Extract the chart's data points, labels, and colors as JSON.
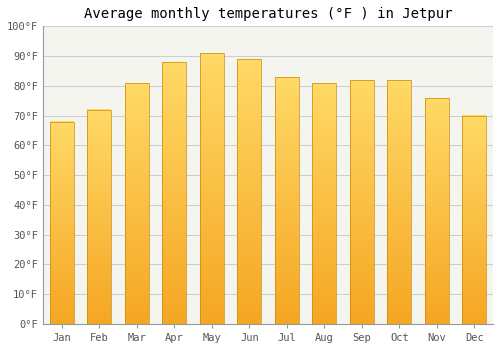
{
  "title": "Average monthly temperatures (°F ) in Jetpur",
  "months": [
    "Jan",
    "Feb",
    "Mar",
    "Apr",
    "May",
    "Jun",
    "Jul",
    "Aug",
    "Sep",
    "Oct",
    "Nov",
    "Dec"
  ],
  "values": [
    68,
    72,
    81,
    88,
    91,
    89,
    83,
    81,
    82,
    82,
    76,
    70
  ],
  "bar_color_bottom": "#F5A623",
  "bar_color_top": "#FFD966",
  "ylim": [
    0,
    100
  ],
  "yticks": [
    0,
    10,
    20,
    30,
    40,
    50,
    60,
    70,
    80,
    90,
    100
  ],
  "ytick_labels": [
    "0°F",
    "10°F",
    "20°F",
    "30°F",
    "40°F",
    "50°F",
    "60°F",
    "70°F",
    "80°F",
    "90°F",
    "100°F"
  ],
  "title_fontsize": 10,
  "tick_fontsize": 7.5,
  "background_color": "#ffffff",
  "plot_bg_color": "#f5f5f0",
  "grid_color": "#cccccc",
  "bar_width": 0.65,
  "n_segments": 100
}
